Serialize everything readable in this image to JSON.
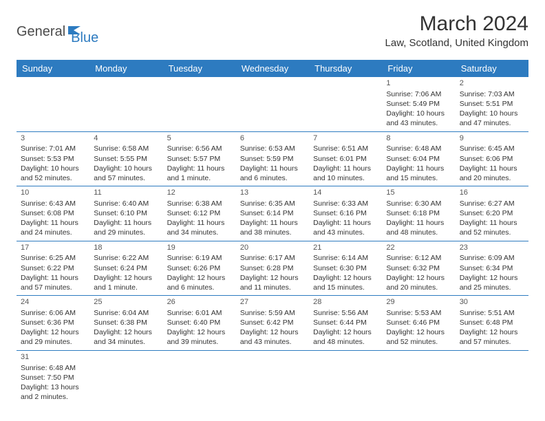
{
  "brand": {
    "part1": "General",
    "part2": "Blue"
  },
  "title": "March 2024",
  "location": "Law, Scotland, United Kingdom",
  "colors": {
    "header_bg": "#2d7bc0",
    "header_text": "#ffffff",
    "row_border": "#2d7bc0",
    "text": "#333333",
    "logo_gray": "#4a4a4a",
    "logo_blue": "#2d7bc0",
    "background": "#ffffff"
  },
  "weekdays": [
    "Sunday",
    "Monday",
    "Tuesday",
    "Wednesday",
    "Thursday",
    "Friday",
    "Saturday"
  ],
  "weeks": [
    [
      null,
      null,
      null,
      null,
      null,
      {
        "d": "1",
        "sr": "Sunrise: 7:06 AM",
        "ss": "Sunset: 5:49 PM",
        "dl1": "Daylight: 10 hours",
        "dl2": "and 43 minutes."
      },
      {
        "d": "2",
        "sr": "Sunrise: 7:03 AM",
        "ss": "Sunset: 5:51 PM",
        "dl1": "Daylight: 10 hours",
        "dl2": "and 47 minutes."
      }
    ],
    [
      {
        "d": "3",
        "sr": "Sunrise: 7:01 AM",
        "ss": "Sunset: 5:53 PM",
        "dl1": "Daylight: 10 hours",
        "dl2": "and 52 minutes."
      },
      {
        "d": "4",
        "sr": "Sunrise: 6:58 AM",
        "ss": "Sunset: 5:55 PM",
        "dl1": "Daylight: 10 hours",
        "dl2": "and 57 minutes."
      },
      {
        "d": "5",
        "sr": "Sunrise: 6:56 AM",
        "ss": "Sunset: 5:57 PM",
        "dl1": "Daylight: 11 hours",
        "dl2": "and 1 minute."
      },
      {
        "d": "6",
        "sr": "Sunrise: 6:53 AM",
        "ss": "Sunset: 5:59 PM",
        "dl1": "Daylight: 11 hours",
        "dl2": "and 6 minutes."
      },
      {
        "d": "7",
        "sr": "Sunrise: 6:51 AM",
        "ss": "Sunset: 6:01 PM",
        "dl1": "Daylight: 11 hours",
        "dl2": "and 10 minutes."
      },
      {
        "d": "8",
        "sr": "Sunrise: 6:48 AM",
        "ss": "Sunset: 6:04 PM",
        "dl1": "Daylight: 11 hours",
        "dl2": "and 15 minutes."
      },
      {
        "d": "9",
        "sr": "Sunrise: 6:45 AM",
        "ss": "Sunset: 6:06 PM",
        "dl1": "Daylight: 11 hours",
        "dl2": "and 20 minutes."
      }
    ],
    [
      {
        "d": "10",
        "sr": "Sunrise: 6:43 AM",
        "ss": "Sunset: 6:08 PM",
        "dl1": "Daylight: 11 hours",
        "dl2": "and 24 minutes."
      },
      {
        "d": "11",
        "sr": "Sunrise: 6:40 AM",
        "ss": "Sunset: 6:10 PM",
        "dl1": "Daylight: 11 hours",
        "dl2": "and 29 minutes."
      },
      {
        "d": "12",
        "sr": "Sunrise: 6:38 AM",
        "ss": "Sunset: 6:12 PM",
        "dl1": "Daylight: 11 hours",
        "dl2": "and 34 minutes."
      },
      {
        "d": "13",
        "sr": "Sunrise: 6:35 AM",
        "ss": "Sunset: 6:14 PM",
        "dl1": "Daylight: 11 hours",
        "dl2": "and 38 minutes."
      },
      {
        "d": "14",
        "sr": "Sunrise: 6:33 AM",
        "ss": "Sunset: 6:16 PM",
        "dl1": "Daylight: 11 hours",
        "dl2": "and 43 minutes."
      },
      {
        "d": "15",
        "sr": "Sunrise: 6:30 AM",
        "ss": "Sunset: 6:18 PM",
        "dl1": "Daylight: 11 hours",
        "dl2": "and 48 minutes."
      },
      {
        "d": "16",
        "sr": "Sunrise: 6:27 AM",
        "ss": "Sunset: 6:20 PM",
        "dl1": "Daylight: 11 hours",
        "dl2": "and 52 minutes."
      }
    ],
    [
      {
        "d": "17",
        "sr": "Sunrise: 6:25 AM",
        "ss": "Sunset: 6:22 PM",
        "dl1": "Daylight: 11 hours",
        "dl2": "and 57 minutes."
      },
      {
        "d": "18",
        "sr": "Sunrise: 6:22 AM",
        "ss": "Sunset: 6:24 PM",
        "dl1": "Daylight: 12 hours",
        "dl2": "and 1 minute."
      },
      {
        "d": "19",
        "sr": "Sunrise: 6:19 AM",
        "ss": "Sunset: 6:26 PM",
        "dl1": "Daylight: 12 hours",
        "dl2": "and 6 minutes."
      },
      {
        "d": "20",
        "sr": "Sunrise: 6:17 AM",
        "ss": "Sunset: 6:28 PM",
        "dl1": "Daylight: 12 hours",
        "dl2": "and 11 minutes."
      },
      {
        "d": "21",
        "sr": "Sunrise: 6:14 AM",
        "ss": "Sunset: 6:30 PM",
        "dl1": "Daylight: 12 hours",
        "dl2": "and 15 minutes."
      },
      {
        "d": "22",
        "sr": "Sunrise: 6:12 AM",
        "ss": "Sunset: 6:32 PM",
        "dl1": "Daylight: 12 hours",
        "dl2": "and 20 minutes."
      },
      {
        "d": "23",
        "sr": "Sunrise: 6:09 AM",
        "ss": "Sunset: 6:34 PM",
        "dl1": "Daylight: 12 hours",
        "dl2": "and 25 minutes."
      }
    ],
    [
      {
        "d": "24",
        "sr": "Sunrise: 6:06 AM",
        "ss": "Sunset: 6:36 PM",
        "dl1": "Daylight: 12 hours",
        "dl2": "and 29 minutes."
      },
      {
        "d": "25",
        "sr": "Sunrise: 6:04 AM",
        "ss": "Sunset: 6:38 PM",
        "dl1": "Daylight: 12 hours",
        "dl2": "and 34 minutes."
      },
      {
        "d": "26",
        "sr": "Sunrise: 6:01 AM",
        "ss": "Sunset: 6:40 PM",
        "dl1": "Daylight: 12 hours",
        "dl2": "and 39 minutes."
      },
      {
        "d": "27",
        "sr": "Sunrise: 5:59 AM",
        "ss": "Sunset: 6:42 PM",
        "dl1": "Daylight: 12 hours",
        "dl2": "and 43 minutes."
      },
      {
        "d": "28",
        "sr": "Sunrise: 5:56 AM",
        "ss": "Sunset: 6:44 PM",
        "dl1": "Daylight: 12 hours",
        "dl2": "and 48 minutes."
      },
      {
        "d": "29",
        "sr": "Sunrise: 5:53 AM",
        "ss": "Sunset: 6:46 PM",
        "dl1": "Daylight: 12 hours",
        "dl2": "and 52 minutes."
      },
      {
        "d": "30",
        "sr": "Sunrise: 5:51 AM",
        "ss": "Sunset: 6:48 PM",
        "dl1": "Daylight: 12 hours",
        "dl2": "and 57 minutes."
      }
    ],
    [
      {
        "d": "31",
        "sr": "Sunrise: 6:48 AM",
        "ss": "Sunset: 7:50 PM",
        "dl1": "Daylight: 13 hours",
        "dl2": "and 2 minutes."
      },
      null,
      null,
      null,
      null,
      null,
      null
    ]
  ]
}
